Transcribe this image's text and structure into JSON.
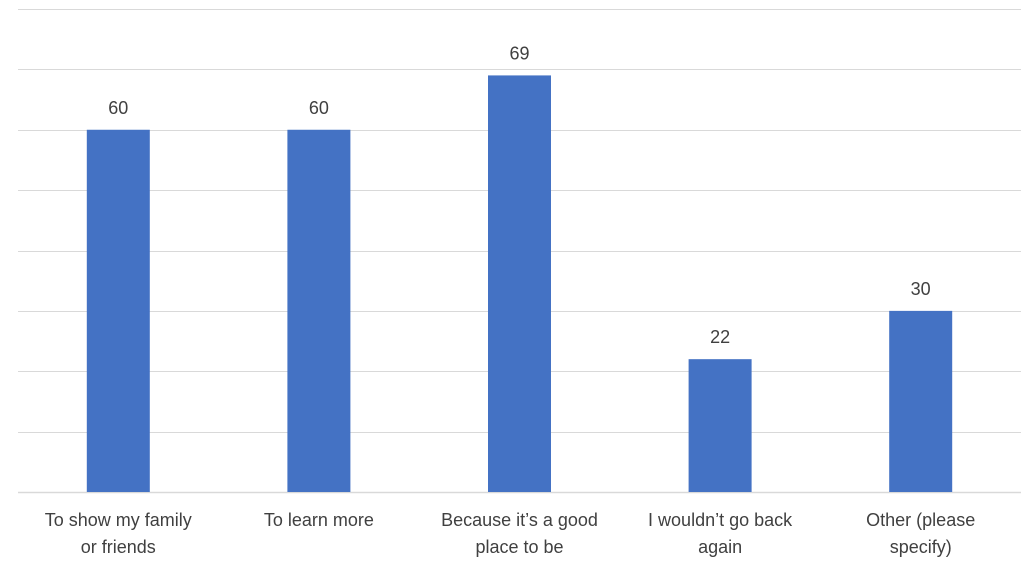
{
  "chart_data": {
    "type": "bar",
    "categories": [
      [
        "To show my family",
        "or friends"
      ],
      [
        "To learn more"
      ],
      [
        "Because it’s a good",
        "place to be"
      ],
      [
        "I wouldn’t go back",
        "again"
      ],
      [
        "Other (please",
        "specify)"
      ]
    ],
    "values": [
      60,
      60,
      69,
      22,
      30
    ],
    "ylim": [
      0,
      80
    ],
    "y_grid_step": 10,
    "grid": true,
    "show_y_tick_labels": false,
    "bar_color": "#4472c4",
    "grid_color": "#d9d9d9",
    "text_color": "#404040"
  }
}
